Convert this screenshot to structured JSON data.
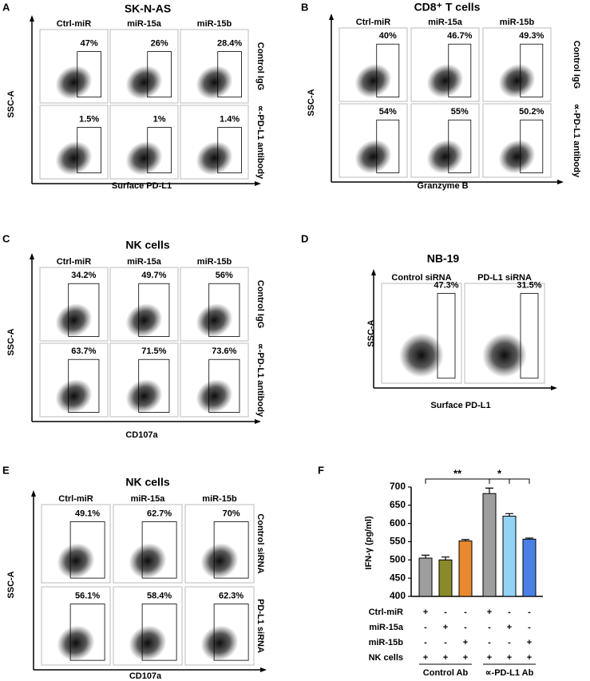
{
  "panels": [
    {
      "letter": "A",
      "title": "SK-N-AS",
      "columns": [
        "Ctrl-miR",
        "miR-15a",
        "miR-15b"
      ],
      "rows": [
        "Control IgG",
        "∝-PD-L1 antibody"
      ],
      "percentages": [
        [
          "47%",
          "26%",
          "28.4%"
        ],
        [
          "1.5%",
          "1%",
          "1.4%"
        ]
      ],
      "y_label": "SSC-A",
      "x_label": "Surface PD-L1"
    },
    {
      "letter": "B",
      "title": "CD8⁺ T cells",
      "columns": [
        "Ctrl-miR",
        "miR-15a",
        "miR-15b"
      ],
      "rows": [
        "Control IgG",
        "∝-PD-L1 antibody"
      ],
      "percentages": [
        [
          "40%",
          "46.7%",
          "49.3%"
        ],
        [
          "54%",
          "55%",
          "50.2%"
        ]
      ],
      "y_label": "SSC-A",
      "x_label": "Granzyme B"
    },
    {
      "letter": "C",
      "title": "NK cells",
      "columns": [
        "Ctrl-miR",
        "miR-15a",
        "miR-15b"
      ],
      "rows": [
        "Control IgG",
        "∝-PD-L1 antibody"
      ],
      "percentages": [
        [
          "34.2%",
          "49.7%",
          "56%"
        ],
        [
          "63.7%",
          "71.5%",
          "73.6%"
        ]
      ],
      "y_label": "SSC-A",
      "x_label": "CD107a"
    },
    {
      "letter": "D",
      "title": "NB-19",
      "columns": [
        "Control siRNA",
        "PD-L1 siRNA"
      ],
      "percentages": [
        [
          "47.3%",
          "31.5%"
        ]
      ],
      "y_label": "SSC-A",
      "x_label": "Surface PD-L1"
    },
    {
      "letter": "E",
      "title": "NK cells",
      "columns": [
        "Ctrl-miR",
        "miR-15a",
        "miR-15b"
      ],
      "rows": [
        "Control siRNA",
        "PD-L1 siRNA"
      ],
      "percentages": [
        [
          "49.1%",
          "62.7%",
          "70%"
        ],
        [
          "56.1%",
          "58.4%",
          "62.3%"
        ]
      ],
      "y_label": "SSC-A",
      "x_label": "CD107a"
    }
  ],
  "chart_data": {
    "type": "bar",
    "letter": "F",
    "y_label": "IFN-γ (pg/ml)",
    "values": [
      505,
      500,
      552,
      682,
      620,
      557
    ],
    "errors": [
      8,
      8,
      4,
      15,
      7,
      3
    ],
    "colors": [
      "#9e9e9e",
      "#8a8a2a",
      "#e8892f",
      "#9e9e9e",
      "#92d2f5",
      "#4a80e6"
    ],
    "ylim": [
      400,
      700
    ],
    "yticks": [
      400,
      450,
      500,
      550,
      600,
      650,
      700
    ],
    "conditions": [
      {
        "name": "Ctrl-miR",
        "signs": [
          "+",
          "-",
          "-",
          "+",
          "-",
          "-"
        ]
      },
      {
        "name": "miR-15a",
        "signs": [
          "-",
          "+",
          "-",
          "-",
          "+",
          "-"
        ]
      },
      {
        "name": "miR-15b",
        "signs": [
          "-",
          "-",
          "+",
          "-",
          "-",
          "+"
        ]
      },
      {
        "name": "NK cells",
        "signs": [
          "+",
          "+",
          "+",
          "+",
          "+",
          "+"
        ]
      }
    ],
    "groups": [
      "Control Ab",
      "∝-PD-L1 Ab"
    ],
    "annotations": [
      "**",
      "*"
    ]
  }
}
